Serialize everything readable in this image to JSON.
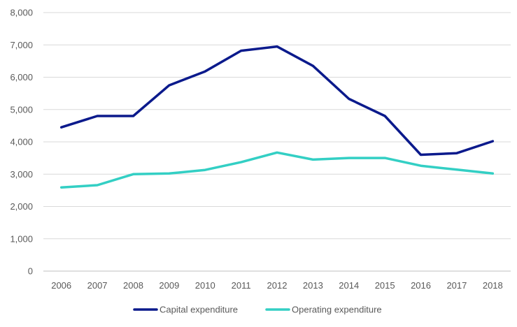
{
  "chart_data": {
    "type": "line",
    "categories": [
      "2006",
      "2007",
      "2008",
      "2009",
      "2010",
      "2011",
      "2012",
      "2013",
      "2014",
      "2015",
      "2016",
      "2017",
      "2018"
    ],
    "series": [
      {
        "name": "Capital expenditure",
        "color": "#0b1a8c",
        "values": [
          4450,
          4800,
          4800,
          5750,
          6180,
          6820,
          6950,
          6350,
          5330,
          4800,
          3600,
          3650,
          4020
        ]
      },
      {
        "name": "Operating expenditure",
        "color": "#33cfc4",
        "values": [
          2590,
          2660,
          3000,
          3020,
          3130,
          3370,
          3670,
          3450,
          3500,
          3500,
          3260,
          3140,
          3020
        ]
      }
    ],
    "yticks": [
      "0",
      "1,000",
      "2,000",
      "3,000",
      "4,000",
      "5,000",
      "6,000",
      "7,000",
      "8,000"
    ],
    "ylim": [
      0,
      8000
    ],
    "ytick_step": 1000,
    "grid": true,
    "legend_position": "bottom",
    "title": "",
    "xlabel": "",
    "ylabel": ""
  }
}
